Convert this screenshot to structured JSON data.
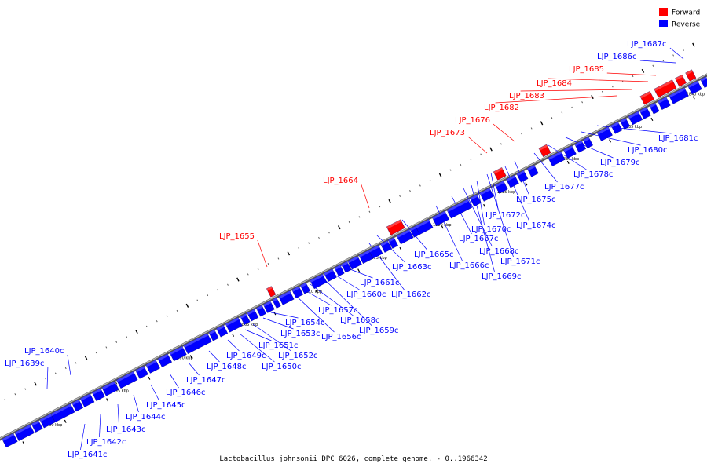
{
  "caption": "Lactobacillus johnsonii DPC 6026, complete genome. - 0..1966342",
  "legend": [
    {
      "label": "Forward",
      "color": "#ff0000"
    },
    {
      "label": "Reverse",
      "color": "#0000ff"
    }
  ],
  "colors": {
    "forward": "#ff0000",
    "reverse": "#0000ff",
    "backbone": "#808080"
  },
  "scale_labels": [
    "1790 kbp",
    "1795 kbp",
    "1800 kbp",
    "1805 kbp",
    "1810 kbp",
    "1815 kbp",
    "1820 kbp",
    "1825 kbp",
    "1830 kbp",
    "1835 kbp",
    "1840 kbp"
  ],
  "genes": [
    {
      "name": "LJP_1639c",
      "strand": "reverse"
    },
    {
      "name": "LJP_1640c",
      "strand": "reverse"
    },
    {
      "name": "LJP_1641c",
      "strand": "reverse"
    },
    {
      "name": "LJP_1642c",
      "strand": "reverse"
    },
    {
      "name": "LJP_1643c",
      "strand": "reverse"
    },
    {
      "name": "LJP_1644c",
      "strand": "reverse"
    },
    {
      "name": "LJP_1645c",
      "strand": "reverse"
    },
    {
      "name": "LJP_1646c",
      "strand": "reverse"
    },
    {
      "name": "LJP_1647c",
      "strand": "reverse"
    },
    {
      "name": "LJP_1648c",
      "strand": "reverse"
    },
    {
      "name": "LJP_1649c",
      "strand": "reverse"
    },
    {
      "name": "LJP_1650c",
      "strand": "reverse"
    },
    {
      "name": "LJP_1651c",
      "strand": "reverse"
    },
    {
      "name": "LJP_1652c",
      "strand": "reverse"
    },
    {
      "name": "LJP_1653c",
      "strand": "reverse"
    },
    {
      "name": "LJP_1654c",
      "strand": "reverse"
    },
    {
      "name": "LJP_1655",
      "strand": "forward"
    },
    {
      "name": "LJP_1656c",
      "strand": "reverse"
    },
    {
      "name": "LJP_1657c",
      "strand": "reverse"
    },
    {
      "name": "LJP_1658c",
      "strand": "reverse"
    },
    {
      "name": "LJP_1659c",
      "strand": "reverse"
    },
    {
      "name": "LJP_1660c",
      "strand": "reverse"
    },
    {
      "name": "LJP_1661c",
      "strand": "reverse"
    },
    {
      "name": "LJP_1662c",
      "strand": "reverse"
    },
    {
      "name": "LJP_1663c",
      "strand": "reverse"
    },
    {
      "name": "LJP_1664",
      "strand": "forward"
    },
    {
      "name": "LJP_1665c",
      "strand": "reverse"
    },
    {
      "name": "LJP_1666c",
      "strand": "reverse"
    },
    {
      "name": "LJP_1667c",
      "strand": "reverse"
    },
    {
      "name": "LJP_1668c",
      "strand": "reverse"
    },
    {
      "name": "LJP_1669c",
      "strand": "reverse"
    },
    {
      "name": "LJP_1670c",
      "strand": "reverse"
    },
    {
      "name": "LJP_1671c",
      "strand": "reverse"
    },
    {
      "name": "LJP_1672c",
      "strand": "reverse"
    },
    {
      "name": "LJP_1673",
      "strand": "forward"
    },
    {
      "name": "LJP_1674c",
      "strand": "reverse"
    },
    {
      "name": "LJP_1675c",
      "strand": "reverse"
    },
    {
      "name": "LJP_1676",
      "strand": "forward"
    },
    {
      "name": "LJP_1677c",
      "strand": "reverse"
    },
    {
      "name": "LJP_1678c",
      "strand": "reverse"
    },
    {
      "name": "LJP_1679c",
      "strand": "reverse"
    },
    {
      "name": "LJP_1680c",
      "strand": "reverse"
    },
    {
      "name": "LJP_1681c",
      "strand": "reverse"
    },
    {
      "name": "LJP_1682",
      "strand": "forward"
    },
    {
      "name": "LJP_1683",
      "strand": "forward"
    },
    {
      "name": "LJP_1684",
      "strand": "forward"
    },
    {
      "name": "LJP_1685",
      "strand": "forward"
    },
    {
      "name": "LJP_1686c",
      "strand": "reverse"
    },
    {
      "name": "LJP_1687c",
      "strand": "reverse"
    }
  ]
}
